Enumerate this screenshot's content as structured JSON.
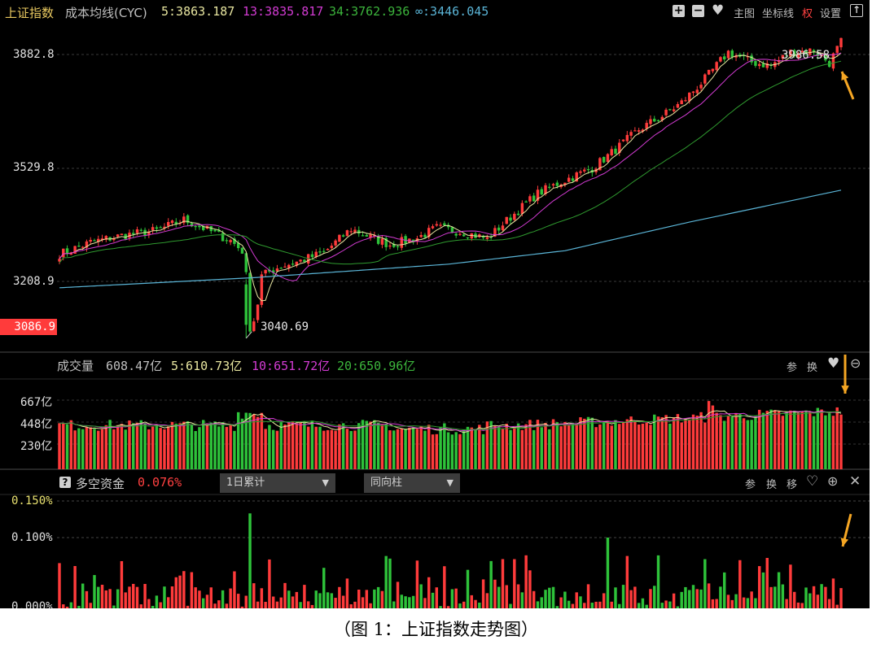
{
  "main_panel": {
    "index_name": "上证指数",
    "indicator_name": "成本均线(CYC)",
    "ma5": "5:3863.187",
    "ma13": "13:3835.817",
    "ma34": "34:3762.936",
    "ma_inf": "∞:3446.045",
    "toolbar": {
      "main_label": "主图",
      "axis_label": "坐标线",
      "rights_label": "权",
      "settings_label": "设置"
    },
    "y_ticks": [
      "3882.8",
      "3529.8",
      "3208.9"
    ],
    "current_price_tag": "3086.9",
    "high_annotation": "3986.58",
    "low_annotation": "3040.69"
  },
  "volume_panel": {
    "title": "成交量",
    "value": "608.47亿",
    "ma5": "5:610.73亿",
    "ma10": "10:651.72亿",
    "ma20": "20:650.96亿",
    "y_ticks": [
      "667亿",
      "448亿",
      "230亿"
    ],
    "buttons": {
      "param": "参",
      "switch": "换"
    }
  },
  "capital_panel": {
    "title": "多空资金",
    "value": "0.076%",
    "dropdown1": "1日累计",
    "dropdown2": "同向柱",
    "y_ticks": [
      "0.150%",
      "0.100%",
      "0.000%"
    ],
    "buttons": {
      "param": "参",
      "switch": "换",
      "move": "移"
    }
  },
  "caption": "（图 1：上证指数走势图）",
  "colors": {
    "up": "#ff3b3b",
    "down": "#2ec23a",
    "ma5": "#e8e6a0",
    "ma13": "#d23bd2",
    "ma34": "#2f9a2f",
    "ma_inf": "#5ab4d6",
    "arrow": "#f5a623"
  },
  "chart_data": {
    "type": "candlestick",
    "title": "上证指数",
    "ylim": [
      3040,
      3990
    ],
    "y_ticks": [
      3208.9,
      3529.8,
      3882.8
    ],
    "annotations": [
      {
        "label": "3986.58",
        "value": 3986.58,
        "kind": "high"
      },
      {
        "label": "3040.69",
        "value": 3040.69,
        "kind": "low"
      }
    ],
    "anchors": [
      [
        0,
        3290
      ],
      [
        8,
        3325
      ],
      [
        16,
        3345
      ],
      [
        25,
        3360
      ],
      [
        32,
        3392
      ],
      [
        38,
        3362
      ],
      [
        44,
        3330
      ],
      [
        47,
        3300
      ],
      [
        49,
        3150
      ],
      [
        52,
        3225
      ],
      [
        56,
        3250
      ],
      [
        62,
        3270
      ],
      [
        68,
        3295
      ],
      [
        75,
        3365
      ],
      [
        80,
        3340
      ],
      [
        85,
        3318
      ],
      [
        92,
        3338
      ],
      [
        97,
        3368
      ],
      [
        104,
        3355
      ],
      [
        110,
        3335
      ],
      [
        116,
        3400
      ],
      [
        123,
        3470
      ],
      [
        130,
        3510
      ],
      [
        137,
        3545
      ],
      [
        143,
        3600
      ],
      [
        149,
        3660
      ],
      [
        155,
        3700
      ],
      [
        160,
        3740
      ],
      [
        166,
        3810
      ],
      [
        172,
        3890
      ],
      [
        178,
        3860
      ],
      [
        183,
        3850
      ],
      [
        188,
        3890
      ],
      [
        194,
        3895
      ],
      [
        198,
        3858
      ],
      [
        201,
        3920
      ]
    ],
    "ma_inf_line": [
      [
        0,
        3190
      ],
      [
        50,
        3220
      ],
      [
        100,
        3260
      ],
      [
        130,
        3300
      ],
      [
        160,
        3380
      ],
      [
        201,
        3480
      ]
    ],
    "volume": {
      "ylim": [
        0,
        780
      ],
      "y_ticks": [
        230,
        448,
        667
      ],
      "series": [
        "成交量",
        "5",
        "10",
        "20"
      ]
    },
    "capital": {
      "ylim": [
        0,
        0.16
      ],
      "y_ticks": [
        0,
        0.1,
        0.15
      ],
      "spike": {
        "index": 49,
        "value": 0.135
      }
    }
  }
}
